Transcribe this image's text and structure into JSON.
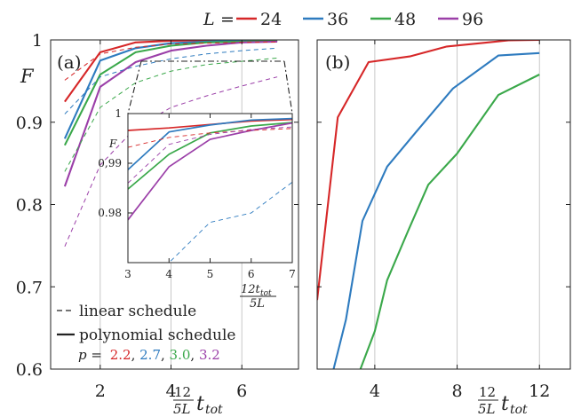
{
  "legend": {
    "L_symbol": "L",
    "equals": "=",
    "entries": [
      "24",
      "36",
      "48",
      "96"
    ]
  },
  "colors": {
    "24": "#d62728",
    "36": "#2e7bbf",
    "48": "#3aa84a",
    "96": "#9b3fa8"
  },
  "panel_a": {
    "label": "(a)",
    "notes": {
      "linear": "linear schedule",
      "polynomial": "polynomial schedule",
      "p_prefix": "p =",
      "p_values": [
        "2.2",
        "2.7",
        "3.0",
        "3.2"
      ]
    },
    "inset": {
      "xlabel_top": "12t",
      "xlabel_sub": "tot",
      "xlabel_bottom": "5L",
      "ylabel": "F"
    }
  },
  "panel_b": {
    "label": "(b)"
  },
  "axis_text": {
    "ylabel": "F",
    "x_frac_num": "12",
    "x_frac_den": "5L",
    "x_t": "t",
    "x_sub": "tot"
  },
  "chart_data": [
    {
      "type": "line",
      "panel": "a",
      "xlabel": "12/(5L) t_tot",
      "ylabel": "F",
      "xlim": [
        0.6,
        7.6
      ],
      "ylim": [
        0.6,
        1.0
      ],
      "xticks": [
        2,
        4,
        6
      ],
      "yticks": [
        0.6,
        0.7,
        0.8,
        0.9,
        1.0
      ],
      "ytick_labels": [
        "0.6",
        "0.7",
        "0.8",
        "0.9",
        "1"
      ],
      "x": [
        1,
        2,
        3,
        4,
        5,
        6,
        7
      ],
      "series": [
        {
          "L": "24",
          "schedule": "polynomial",
          "values": [
            0.925,
            0.985,
            0.997,
            0.999,
            0.9995,
            0.9998,
            0.9999
          ]
        },
        {
          "L": "36",
          "schedule": "polynomial",
          "values": [
            0.88,
            0.975,
            0.99,
            0.996,
            0.998,
            0.999,
            0.9995
          ]
        },
        {
          "L": "48",
          "schedule": "polynomial",
          "values": [
            0.872,
            0.958,
            0.985,
            0.993,
            0.997,
            0.998,
            0.999
          ]
        },
        {
          "L": "96",
          "schedule": "polynomial",
          "values": [
            0.822,
            0.943,
            0.973,
            0.987,
            0.993,
            0.997,
            0.998
          ]
        },
        {
          "L": "24",
          "schedule": "linear",
          "values": [
            0.951,
            0.983,
            0.991,
            0.995,
            0.996,
            0.997,
            0.9975
          ]
        },
        {
          "L": "36",
          "schedule": "linear",
          "values": [
            0.91,
            0.955,
            0.968,
            0.977,
            0.983,
            0.987,
            0.99
          ]
        },
        {
          "L": "48",
          "schedule": "linear",
          "values": [
            0.84,
            0.918,
            0.948,
            0.962,
            0.97,
            0.974,
            0.978
          ]
        },
        {
          "L": "96",
          "schedule": "linear",
          "values": [
            0.749,
            0.848,
            0.893,
            0.918,
            0.932,
            0.944,
            0.955
          ]
        }
      ]
    },
    {
      "type": "line",
      "panel": "a-inset",
      "xlim": [
        3,
        7
      ],
      "ylim": [
        0.97,
        1.0
      ],
      "xticks": [
        3,
        4,
        5,
        6,
        7
      ],
      "yticks": [
        0.98,
        0.99,
        1.0
      ],
      "ytick_labels": [
        "0.98",
        "0,99",
        "1"
      ],
      "x": [
        3,
        4,
        5,
        6,
        7
      ],
      "series": [
        {
          "L": "24",
          "schedule": "polynomial",
          "values": [
            0.9966,
            0.9971,
            0.9978,
            0.9985,
            0.9988
          ]
        },
        {
          "L": "36",
          "schedule": "polynomial",
          "values": [
            0.9887,
            0.9963,
            0.9977,
            0.9987,
            0.999
          ]
        },
        {
          "L": "48",
          "schedule": "polynomial",
          "values": [
            0.9848,
            0.9918,
            0.9961,
            0.9975,
            0.9982
          ]
        },
        {
          "L": "96",
          "schedule": "polynomial",
          "values": [
            0.9786,
            0.9893,
            0.9948,
            0.9966,
            0.9981
          ]
        },
        {
          "L": "24",
          "schedule": "linear",
          "values": [
            0.9932,
            0.9952,
            0.9961,
            0.9966,
            0.997
          ]
        },
        {
          "L": "36",
          "schedule": "linear",
          "values": [
            0.966,
            0.97,
            0.9781,
            0.98,
            0.9862
          ]
        },
        {
          "L": "96",
          "schedule": "linear",
          "values": [
            0.986,
            0.9938,
            0.9958,
            0.9968,
            0.9973
          ]
        }
      ]
    },
    {
      "type": "line",
      "panel": "b",
      "xlabel": "12/(5L) t_tot",
      "xlim": [
        1.2,
        13.5
      ],
      "ylim": [
        0.6,
        1.0
      ],
      "xticks": [
        4,
        8,
        12
      ],
      "series": [
        {
          "L": "24",
          "x": [
            1.2,
            2.2,
            3.7,
            5.7,
            7.5,
            9.5,
            10.5,
            12.0
          ],
          "values": [
            0.684,
            0.906,
            0.973,
            0.98,
            0.992,
            0.997,
            0.9995,
            1.0
          ]
        },
        {
          "L": "36",
          "x": [
            2.0,
            2.6,
            3.4,
            4.6,
            6.0,
            7.8,
            10.0,
            12.0
          ],
          "values": [
            0.6,
            0.66,
            0.78,
            0.846,
            0.888,
            0.941,
            0.981,
            0.984
          ]
        },
        {
          "L": "48",
          "x": [
            3.3,
            4.0,
            4.6,
            5.6,
            6.6,
            8.0,
            10.0,
            12.0
          ],
          "values": [
            0.6,
            0.646,
            0.708,
            0.767,
            0.824,
            0.862,
            0.933,
            0.958
          ]
        }
      ]
    }
  ]
}
